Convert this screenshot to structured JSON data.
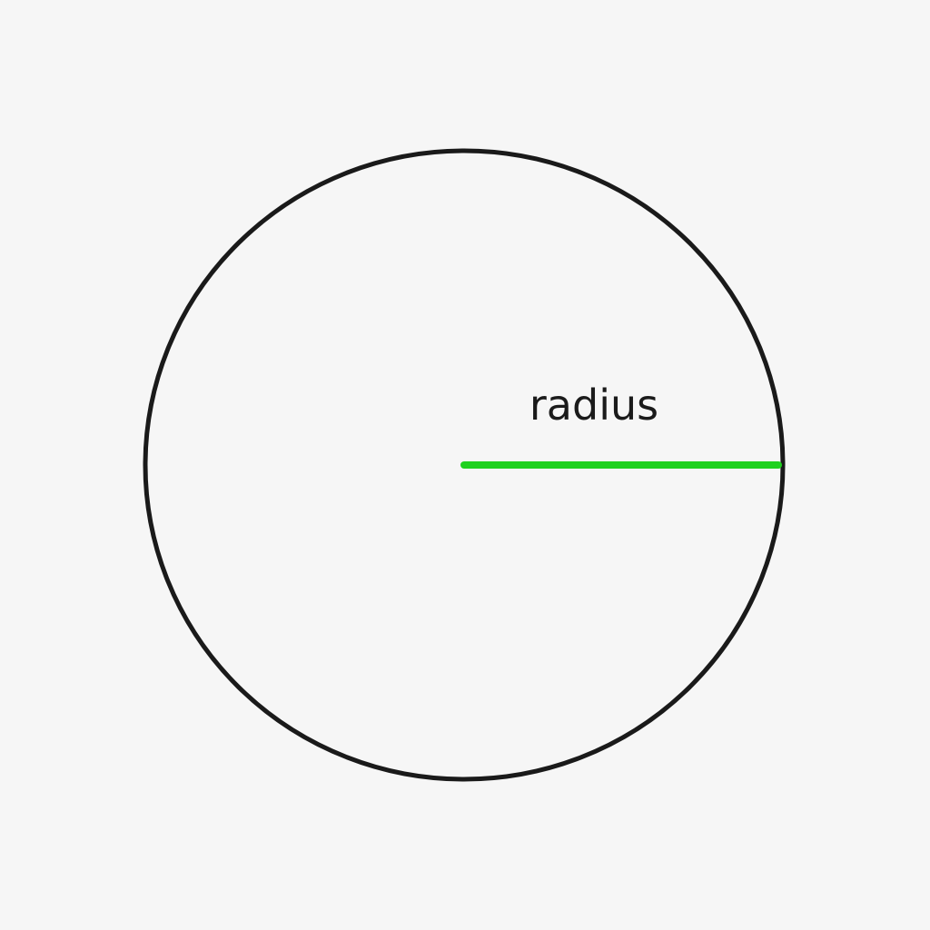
{
  "diagram": {
    "radius_label": "radius",
    "colors": {
      "background": "#f6f6f6",
      "circle_stroke": "#1a1a1a",
      "radius_line": "#1fd11f",
      "label_text": "#1a1a1a"
    }
  }
}
